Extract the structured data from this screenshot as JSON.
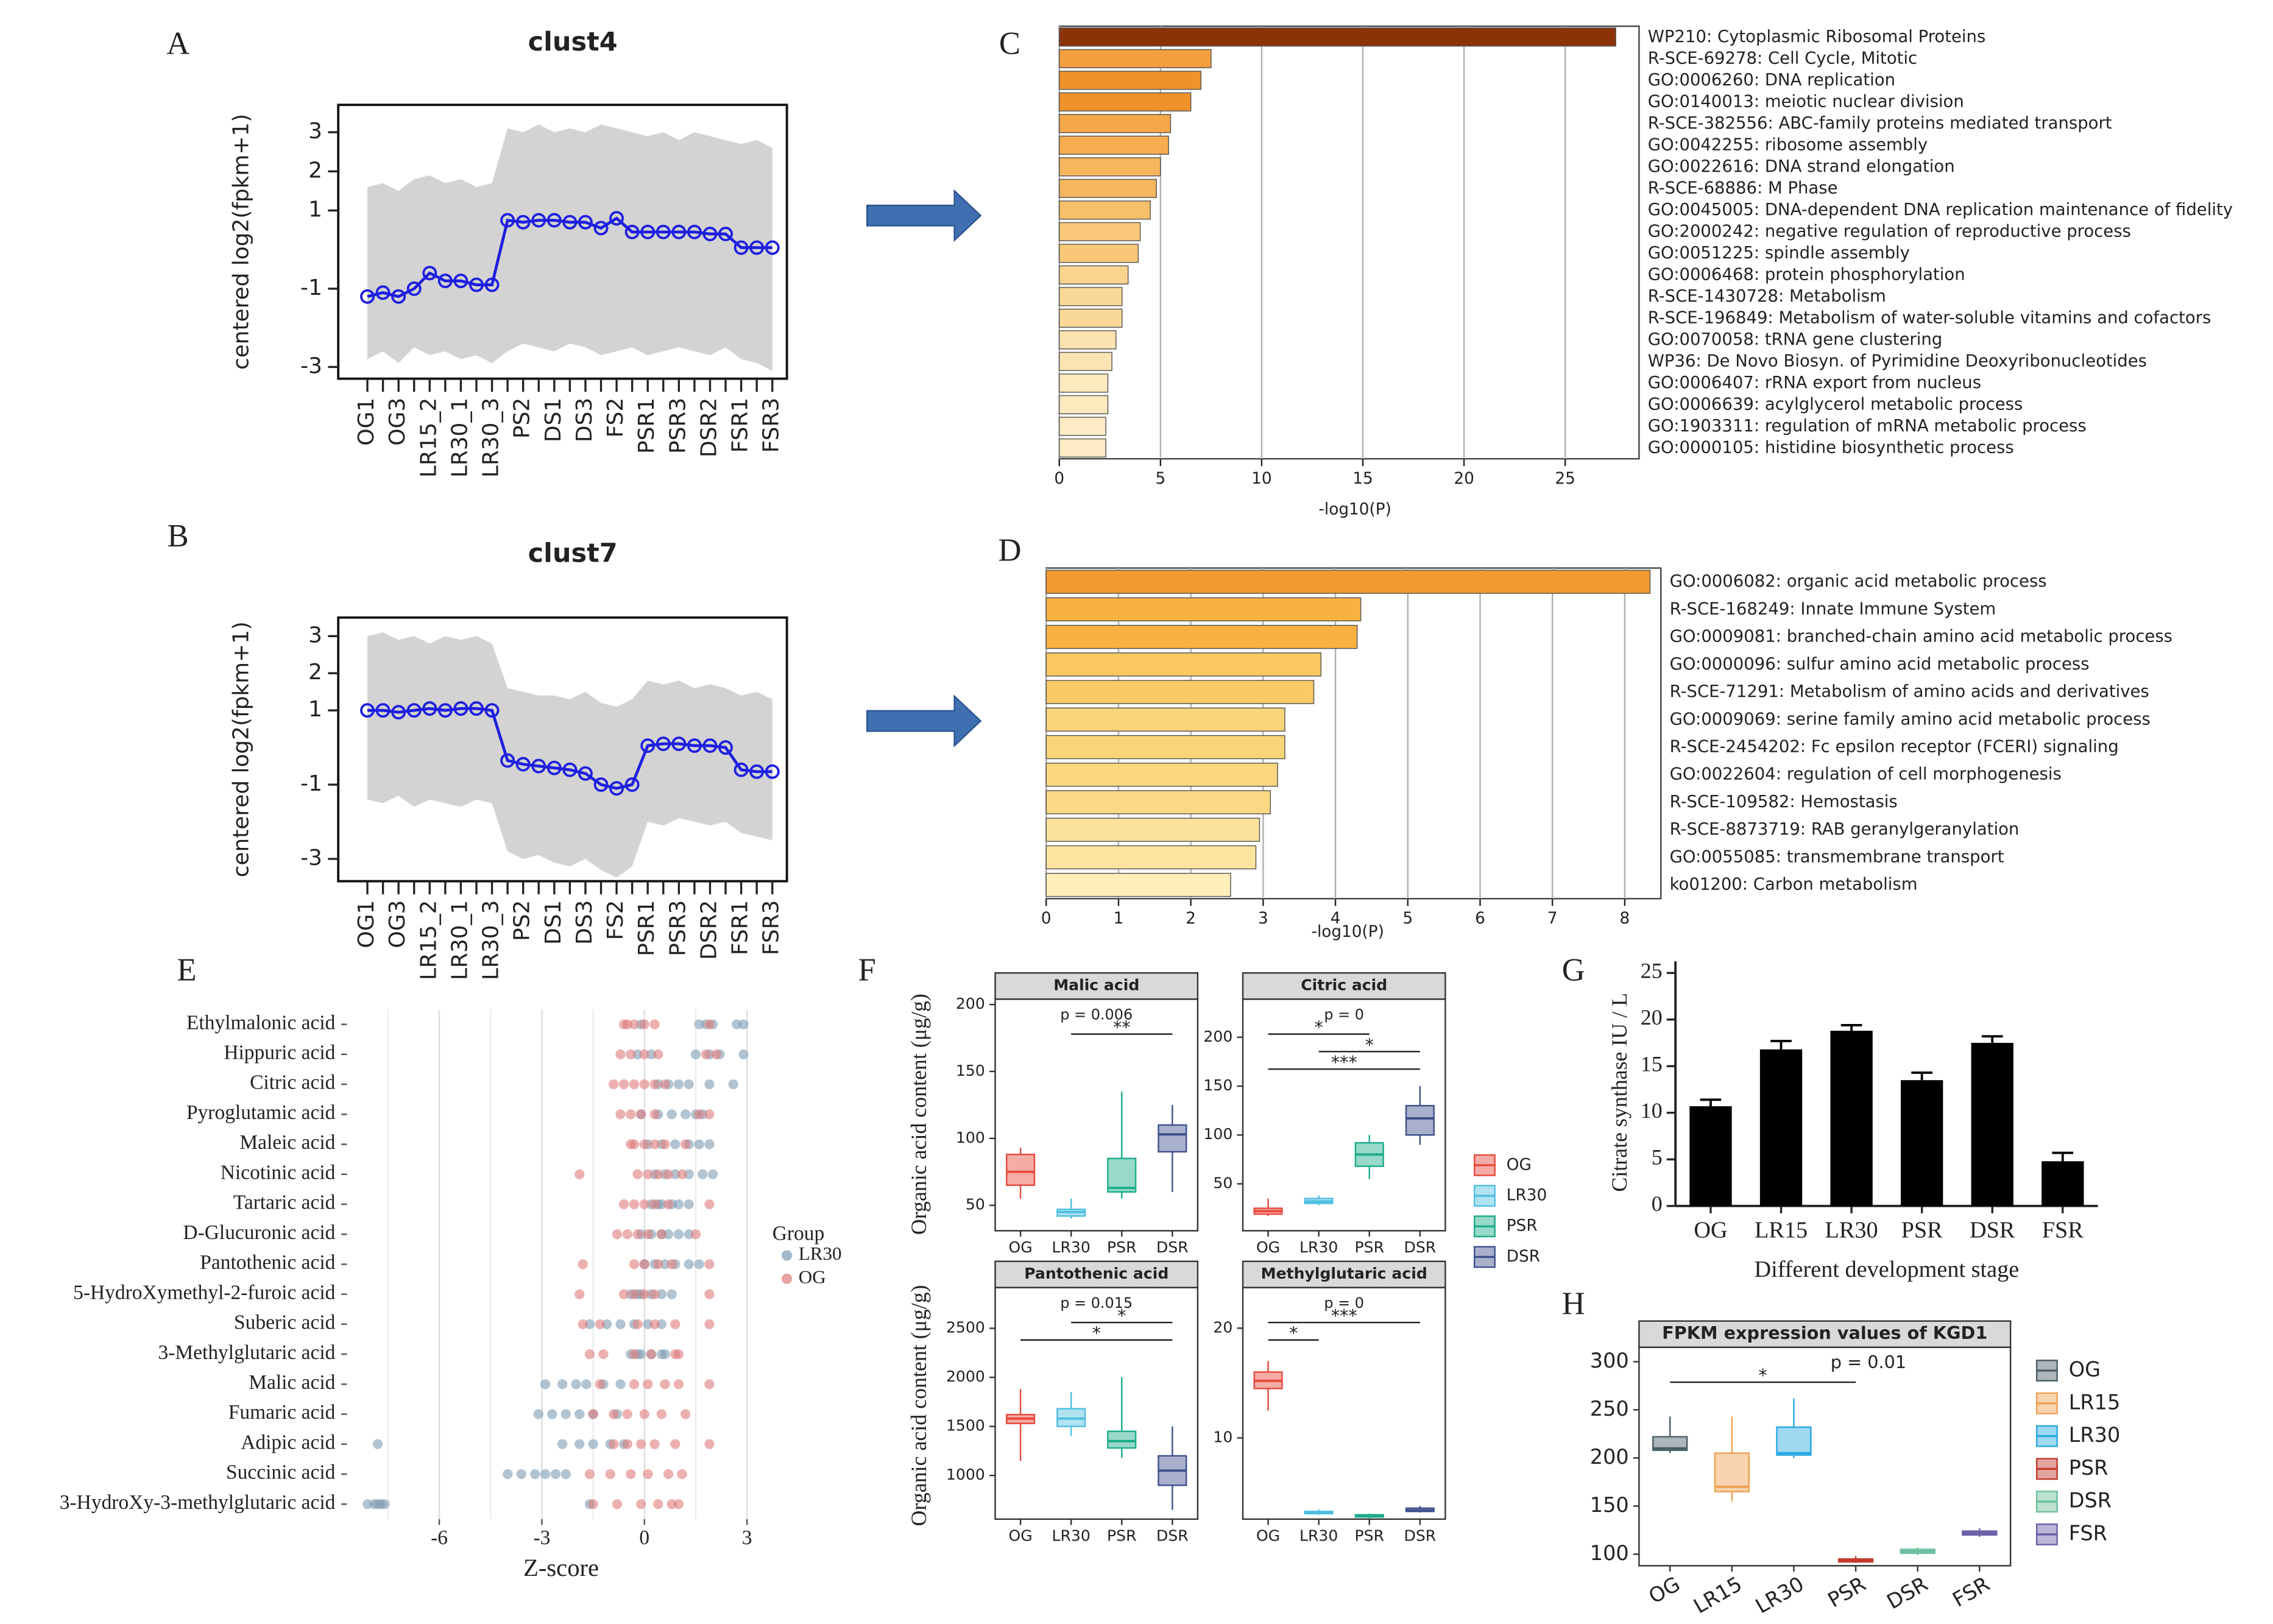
{
  "chart_data": [
    {
      "type": "line",
      "panel": "A",
      "title": "clust4",
      "y_label": "centered log2(fpkm+1)",
      "categories": [
        "OG1",
        null,
        "OG3",
        null,
        "LR15_2",
        null,
        "LR30_1",
        null,
        "LR30_3",
        null,
        "PS2",
        null,
        "DS1",
        null,
        "DS3",
        null,
        "FS2",
        null,
        "PSR1",
        null,
        "PSR3",
        null,
        "DSR2",
        null,
        "FSR1",
        null,
        "FSR3"
      ],
      "series": [
        {
          "color": "#1f1fe0",
          "values": [
            -1.2,
            -1.1,
            -1.2,
            -1.0,
            -0.6,
            -0.8,
            -0.8,
            -0.9,
            -0.9,
            0.75,
            0.7,
            0.75,
            0.75,
            0.7,
            0.7,
            0.55,
            0.8,
            0.45,
            0.45,
            0.45,
            0.45,
            0.45,
            0.4,
            0.4,
            0.05,
            0.05,
            0.05
          ]
        }
      ],
      "spread": {
        "color": "#d3d3d3",
        "low": [
          -2.8,
          -2.6,
          -2.9,
          -2.5,
          -2.7,
          -2.6,
          -2.8,
          -2.7,
          -2.9,
          -2.6,
          -2.4,
          -2.5,
          -2.6,
          -2.4,
          -2.5,
          -2.7,
          -2.6,
          -2.5,
          -2.7,
          -2.6,
          -2.5,
          -2.6,
          -2.7,
          -2.5,
          -2.8,
          -2.9,
          -3.1
        ],
        "high": [
          1.6,
          1.7,
          1.5,
          1.8,
          1.9,
          1.7,
          1.8,
          1.6,
          1.7,
          3.1,
          3.0,
          3.2,
          3.0,
          3.1,
          3.0,
          3.2,
          3.1,
          3.0,
          2.9,
          3.0,
          2.8,
          3.0,
          2.9,
          2.8,
          2.7,
          2.8,
          2.6
        ]
      },
      "ylim": [
        -3.3,
        3.7
      ],
      "yticks": [
        -3,
        -1,
        1,
        2,
        3
      ]
    },
    {
      "type": "line",
      "panel": "B",
      "title": "clust7",
      "y_label": "centered log2(fpkm+1)",
      "categories": [
        "OG1",
        null,
        "OG3",
        null,
        "LR15_2",
        null,
        "LR30_1",
        null,
        "LR30_3",
        null,
        "PS2",
        null,
        "DS1",
        null,
        "DS3",
        null,
        "FS2",
        null,
        "PSR1",
        null,
        "PSR3",
        null,
        "DSR2",
        null,
        "FSR1",
        null,
        "FSR3"
      ],
      "series": [
        {
          "color": "#1f1fe0",
          "values": [
            1.0,
            1.0,
            0.95,
            1.0,
            1.05,
            1.0,
            1.05,
            1.05,
            1.0,
            -0.35,
            -0.45,
            -0.5,
            -0.55,
            -0.6,
            -0.7,
            -1.0,
            -1.1,
            -1.0,
            0.05,
            0.1,
            0.1,
            0.05,
            0.05,
            0.0,
            -0.6,
            -0.65,
            -0.65
          ]
        }
      ],
      "spread": {
        "color": "#d3d3d3",
        "low": [
          -1.4,
          -1.5,
          -1.3,
          -1.6,
          -1.4,
          -1.5,
          -1.6,
          -1.4,
          -1.5,
          -2.8,
          -3.0,
          -2.9,
          -3.1,
          -3.2,
          -3.0,
          -3.3,
          -3.5,
          -3.2,
          -2.0,
          -2.1,
          -1.9,
          -2.0,
          -2.1,
          -2.0,
          -2.3,
          -2.4,
          -2.5
        ],
        "high": [
          3.0,
          3.1,
          2.9,
          3.0,
          2.8,
          3.0,
          2.9,
          3.0,
          2.8,
          1.6,
          1.5,
          1.4,
          1.4,
          1.3,
          1.5,
          1.2,
          1.1,
          1.3,
          1.8,
          1.7,
          1.8,
          1.6,
          1.7,
          1.6,
          1.4,
          1.5,
          1.3
        ]
      },
      "ylim": [
        -3.6,
        3.5
      ],
      "yticks": [
        -3,
        -1,
        1,
        2,
        3
      ]
    },
    {
      "type": "hbar",
      "panel": "C",
      "x_label": "-log10(P)",
      "categories": [
        "WP210: Cytoplasmic Ribosomal Proteins",
        "R-SCE-69278: Cell Cycle, Mitotic",
        "GO:0006260: DNA replication",
        "GO:0140013: meiotic nuclear division",
        "R-SCE-382556: ABC-family proteins mediated transport",
        "GO:0042255: ribosome assembly",
        "GO:0022616: DNA strand elongation",
        "R-SCE-68886: M Phase",
        "GO:0045005: DNA-dependent DNA replication maintenance of fidelity",
        "GO:2000242: negative regulation of reproductive process",
        "GO:0051225: spindle assembly",
        "GO:0006468: protein phosphorylation",
        "R-SCE-1430728: Metabolism",
        "R-SCE-196849: Metabolism of water-soluble vitamins and cofactors",
        "GO:0070058: tRNA gene clustering",
        "WP36: De Novo Biosyn. of Pyrimidine Deoxyribonucleotides",
        "GO:0006407: rRNA export from nucleus",
        "GO:0006639: acylglycerol metabolic process",
        "GO:1903311: regulation of mRNA metabolic process",
        "GO:0000105: histidine biosynthetic process"
      ],
      "values": [
        27.5,
        7.5,
        7.0,
        6.5,
        5.5,
        5.4,
        5.0,
        4.8,
        4.5,
        4.0,
        3.9,
        3.4,
        3.1,
        3.1,
        2.8,
        2.6,
        2.4,
        2.4,
        2.3,
        2.3
      ],
      "colors": [
        "#8b3208",
        "#f4a040",
        "#f0922a",
        "#f0922a",
        "#f4a84a",
        "#f5ad50",
        "#f6b65e",
        "#f6b65e",
        "#f7bf6a",
        "#f8c878",
        "#f8c878",
        "#f9d48e",
        "#fad898",
        "#fad898",
        "#fbe2ae",
        "#fbe4b2",
        "#fce9be",
        "#fce9be",
        "#fcebc4",
        "#fcebc4"
      ],
      "xlim": [
        0,
        28.65
      ],
      "xticks": [
        0,
        5,
        10,
        15,
        20,
        25
      ],
      "grid": true
    },
    {
      "type": "hbar",
      "panel": "D",
      "x_label": "-log10(P)",
      "categories": [
        "GO:0006082: organic acid metabolic process",
        "R-SCE-168249: Innate Immune System",
        "GO:0009081: branched-chain amino acid metabolic process",
        "GO:0000096: sulfur amino acid metabolic process",
        "R-SCE-71291: Metabolism of amino acids and derivatives",
        "GO:0009069: serine family amino acid metabolic process",
        "R-SCE-2454202: Fc epsilon receptor (FCERI) signaling",
        "GO:0022604: regulation of cell morphogenesis",
        "R-SCE-109582: Hemostasis",
        "R-SCE-8873719: RAB geranylgeranylation",
        "GO:0055085: transmembrane transport",
        "ko01200: Carbon metabolism"
      ],
      "values": [
        8.35,
        4.35,
        4.3,
        3.8,
        3.7,
        3.3,
        3.3,
        3.2,
        3.1,
        2.95,
        2.9,
        2.55
      ],
      "colors": [
        "#f39a2e",
        "#f7b240",
        "#f7b240",
        "#f9c860",
        "#f9ca66",
        "#fad478",
        "#fad478",
        "#fad67e",
        "#fbd884",
        "#fce29a",
        "#fce49e",
        "#fdeeba"
      ],
      "xlim": [
        0,
        8.5
      ],
      "xticks": [
        0,
        1,
        2,
        3,
        4,
        5,
        6,
        7,
        8
      ],
      "grid": true
    },
    {
      "type": "strip",
      "panel": "E",
      "x_label": "Z-score",
      "legend_title": "Group",
      "legend": "right",
      "categories": [
        "Ethylmalonic acid",
        "Hippuric acid",
        "Citric acid",
        "Pyroglutamic acid",
        "Maleic acid",
        "Nicotinic acid",
        "Tartaric acid",
        "D-Glucuronic acid",
        "Pantothenic acid",
        "5-HydroXymethyl-2-furoic acid",
        "Suberic acid",
        "3-Methylglutaric acid",
        "Malic acid",
        "Fumaric acid",
        "Adipic acid",
        "Succinic acid",
        "3-HydroXy-3-methylglutaric acid"
      ],
      "series": [
        {
          "name": "LR30",
          "color": "#7f9bb3",
          "values": [
            [
              1.6,
              1.8,
              2.0,
              2.7,
              2.9,
              -0.1
            ],
            [
              1.5,
              1.9,
              2.2,
              2.9,
              -0.2,
              0.2
            ],
            [
              0.7,
              1.0,
              1.3,
              1.9,
              2.6,
              0.4
            ],
            [
              0.4,
              0.8,
              1.2,
              1.5,
              1.7,
              -0.1
            ],
            [
              0.5,
              0.9,
              1.3,
              1.6,
              1.9,
              0.1
            ],
            [
              0.3,
              0.6,
              0.9,
              1.3,
              1.7,
              2.0
            ],
            [
              0.2,
              0.5,
              0.8,
              1.0,
              1.3,
              0.4
            ],
            [
              0.2,
              0.5,
              0.7,
              1.0,
              1.3,
              -0.1
            ],
            [
              0.0,
              0.3,
              0.6,
              0.9,
              1.3,
              1.6
            ],
            [
              -0.4,
              -0.1,
              0.2,
              0.5,
              0.8,
              -0.2
            ],
            [
              -1.6,
              -1.1,
              -0.7,
              -0.3,
              0.1,
              0.5
            ],
            [
              -0.4,
              -0.1,
              0.2,
              0.5,
              -0.2,
              0.6
            ],
            [
              -2.9,
              -2.4,
              -2.0,
              -1.7,
              -1.2,
              -0.7
            ],
            [
              -3.1,
              -2.7,
              -2.3,
              -1.9,
              -1.5,
              -0.8
            ],
            [
              -7.8,
              -2.4,
              -1.9,
              -1.5,
              -1.0,
              -0.6
            ],
            [
              -4.0,
              -3.6,
              -3.2,
              -2.9,
              -2.6,
              -2.3
            ],
            [
              -8.1,
              -7.9,
              -7.8,
              -7.7,
              -1.6,
              -7.6
            ]
          ]
        },
        {
          "name": "OG",
          "color": "#e07b7b",
          "values": [
            [
              -0.6,
              -0.3,
              0.0,
              0.3,
              -0.5,
              1.9
            ],
            [
              -0.7,
              -0.4,
              0.0,
              0.4,
              1.8,
              2.1
            ],
            [
              -0.9,
              -0.6,
              -0.3,
              0.0,
              0.3,
              0.6
            ],
            [
              -0.7,
              -0.4,
              -0.1,
              0.3,
              1.6,
              1.9
            ],
            [
              -0.4,
              0.0,
              0.3,
              0.6,
              1.2,
              -0.3
            ],
            [
              -1.9,
              -0.2,
              0.1,
              0.4,
              0.7,
              1.1
            ],
            [
              -0.6,
              -0.3,
              0.0,
              0.3,
              0.7,
              1.9
            ],
            [
              -0.8,
              -0.5,
              -0.2,
              0.1,
              0.5,
              1.5
            ],
            [
              -1.8,
              -0.3,
              0.0,
              0.4,
              0.8,
              1.9
            ],
            [
              -1.9,
              -0.6,
              -0.3,
              0.0,
              0.3,
              1.9
            ],
            [
              -1.8,
              -1.3,
              -0.2,
              0.3,
              0.9,
              1.9
            ],
            [
              -1.6,
              -1.2,
              -0.3,
              0.2,
              0.9,
              1.0
            ],
            [
              -1.3,
              -0.3,
              0.1,
              0.6,
              1.0,
              1.9
            ],
            [
              -1.5,
              -0.9,
              -0.5,
              0.0,
              0.5,
              1.2
            ],
            [
              -0.9,
              -0.5,
              -0.1,
              0.3,
              0.9,
              1.9
            ],
            [
              -1.6,
              -1.0,
              -0.4,
              0.1,
              0.7,
              1.1
            ],
            [
              -1.5,
              -0.8,
              -0.1,
              0.4,
              0.8,
              1.0
            ]
          ]
        }
      ],
      "xlim": [
        -8.7,
        3.4
      ],
      "xticks": [
        -6,
        -3,
        0,
        3
      ],
      "minor_xticks": [
        -7.5,
        -4.5,
        -1.5,
        1.5
      ],
      "grid": true
    },
    {
      "type": "box",
      "panel": "F",
      "y_label": "Organic acid content (μg/g)",
      "title": "Malic acid",
      "subtitle": "p = 0.006",
      "legend": "right",
      "categories": [
        "OG",
        "LR30",
        "PSR",
        "DSR"
      ],
      "colors": [
        "#e8483c",
        "#4fbfe0",
        "#1aab8a",
        "#3d4f8c"
      ],
      "min": [
        55,
        40,
        55,
        60
      ],
      "q1": [
        65,
        42,
        60,
        90
      ],
      "median": [
        75,
        45,
        63,
        103
      ],
      "q3": [
        88,
        47,
        85,
        110
      ],
      "max": [
        93,
        55,
        135,
        125
      ],
      "brackets": [
        {
          "from": "LR30",
          "to": "DSR",
          "label": "**"
        }
      ],
      "ylim": [
        31,
        204
      ],
      "yticks": [
        50,
        100,
        150,
        200
      ]
    },
    {
      "type": "box",
      "title": "Citric acid",
      "subtitle": "p = 0",
      "categories": [
        "OG",
        "LR30",
        "PSR",
        "DSR"
      ],
      "colors": [
        "#e8483c",
        "#4fbfe0",
        "#1aab8a",
        "#3d4f8c"
      ],
      "min": [
        17,
        28,
        55,
        90
      ],
      "q1": [
        19,
        30,
        68,
        100
      ],
      "median": [
        22,
        32,
        80,
        117
      ],
      "q3": [
        25,
        35,
        92,
        130
      ],
      "max": [
        35,
        38,
        100,
        150
      ],
      "brackets": [
        {
          "from": "OG",
          "to": "PSR",
          "label": "*"
        },
        {
          "from": "LR30",
          "to": "DSR",
          "label": "*"
        },
        {
          "from": "OG",
          "to": "DSR",
          "label": "***"
        }
      ],
      "ylim": [
        2,
        239
      ],
      "yticks": [
        50,
        100,
        150,
        200
      ]
    },
    {
      "type": "box",
      "y_label": "Organic acid content (μg/g)",
      "title": "Pantothenic acid",
      "subtitle": "p = 0.015",
      "categories": [
        "OG",
        "LR30",
        "PSR",
        "DSR"
      ],
      "colors": [
        "#e8483c",
        "#4fbfe0",
        "#1aab8a",
        "#3d4f8c"
      ],
      "min": [
        1150,
        1400,
        1180,
        650
      ],
      "q1": [
        1530,
        1500,
        1280,
        900
      ],
      "median": [
        1580,
        1580,
        1350,
        1050
      ],
      "q3": [
        1620,
        1680,
        1450,
        1200
      ],
      "max": [
        1880,
        1850,
        2000,
        1500
      ],
      "brackets": [
        {
          "from": "LR30",
          "to": "DSR",
          "label": "*"
        },
        {
          "from": "OG",
          "to": "DSR",
          "label": "*"
        }
      ],
      "ylim": [
        555,
        2915
      ],
      "yticks": [
        1000,
        1500,
        2000,
        2500
      ]
    },
    {
      "type": "box",
      "title": "Methylglutaric acid",
      "subtitle": "p = 0",
      "categories": [
        "OG",
        "LR30",
        "PSR",
        "DSR"
      ],
      "colors": [
        "#e8483c",
        "#4fbfe0",
        "#1aab8a",
        "#3d4f8c"
      ],
      "min": [
        12.5,
        3.0,
        2.7,
        3.2
      ],
      "q1": [
        14.5,
        3.1,
        2.8,
        3.3
      ],
      "median": [
        15.2,
        3.2,
        2.9,
        3.4
      ],
      "q3": [
        16,
        3.3,
        3.0,
        3.6
      ],
      "max": [
        17,
        3.5,
        3.1,
        3.8
      ],
      "brackets": [
        {
          "from": "OG",
          "to": "DSR",
          "label": "***"
        },
        {
          "from": "OG",
          "to": "LR30",
          "label": "*"
        }
      ],
      "ylim": [
        2.6,
        23.7
      ],
      "yticks": [
        10,
        20
      ]
    },
    {
      "type": "bar",
      "panel": "G",
      "y_label": "Citrate synthase IU / L",
      "x_label": "Different development stage",
      "categories": [
        "OG",
        "LR15",
        "LR30",
        "PSR",
        "DSR",
        "FSR"
      ],
      "values": [
        10.7,
        16.8,
        18.8,
        13.5,
        17.5,
        4.8
      ],
      "errors": [
        0.7,
        0.9,
        0.6,
        0.8,
        0.7,
        0.9
      ],
      "color": "#000000",
      "ylim": [
        0,
        26.25
      ],
      "yticks": [
        0,
        5,
        10,
        15,
        20,
        25
      ]
    },
    {
      "type": "box",
      "panel": "H",
      "title": "FPKM expression values of KGD1",
      "subtitle": "p = 0.01",
      "legend": "right",
      "categories": [
        "OG",
        "LR15",
        "LR30",
        "PSR",
        "DSR",
        "FSR"
      ],
      "colors": [
        "#4a5e66",
        "#f0a050",
        "#27a9e1",
        "#c0392b",
        "#6cbf9c",
        "#6b5fa8"
      ],
      "min": [
        205,
        155,
        200,
        91,
        99,
        118
      ],
      "q1": [
        208,
        165,
        203,
        92,
        101,
        120
      ],
      "median": [
        210,
        170,
        205,
        93,
        103,
        122
      ],
      "q3": [
        222,
        205,
        232,
        95,
        105,
        124
      ],
      "max": [
        243,
        243,
        262,
        98,
        107,
        127
      ],
      "brackets": [
        {
          "from": "OG",
          "to": "PSR",
          "label": "*"
        }
      ],
      "ylim": [
        88,
        315
      ],
      "yticks": [
        100,
        150,
        200,
        250,
        300
      ]
    }
  ]
}
